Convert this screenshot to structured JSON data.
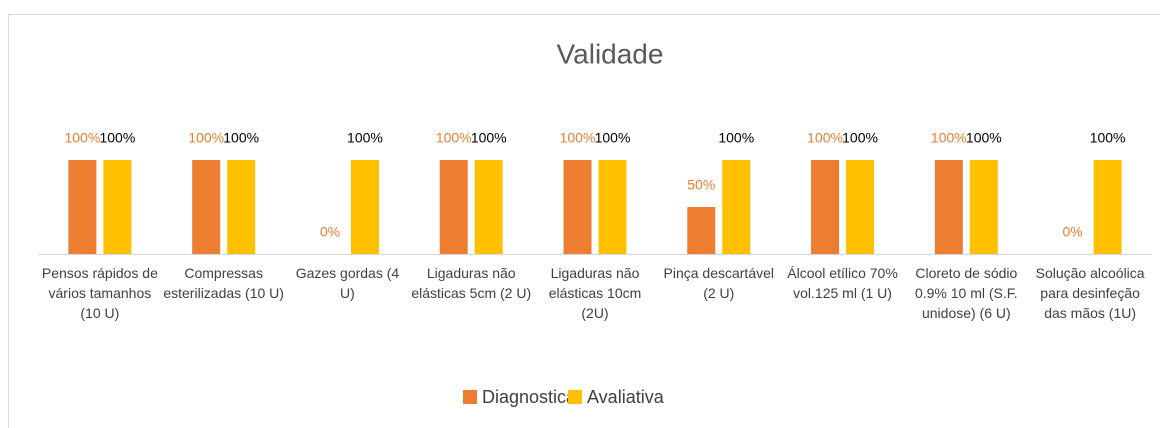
{
  "chart_data": {
    "type": "bar",
    "title": "Validade",
    "categories": [
      "Pensos rápidos de vários tamanhos (10 U)",
      "Compressas esterilizadas (10 U)",
      "Gazes gordas (4 U)",
      "Ligaduras não elásticas 5cm (2 U)",
      "Ligaduras não elásticas 10cm (2U)",
      "Pinça descartável (2 U)",
      "Álcool etílico 70% vol.125 ml (1 U)",
      "Cloreto de sódio 0.9% 10 ml (S.F. unidose) (6 U)",
      "Solução alcoólica para desinfeção das mãos (1U)"
    ],
    "series": [
      {
        "name": "Diagnostica",
        "color": "#ed7d31",
        "values": [
          100,
          100,
          0,
          100,
          100,
          50,
          100,
          100,
          0
        ],
        "value_labels": [
          "100%",
          "100%",
          "0%",
          "100%",
          "100%",
          "50%",
          "100%",
          "100%",
          "0%"
        ]
      },
      {
        "name": "Avaliativa",
        "color": "#ffc000",
        "values": [
          100,
          100,
          100,
          100,
          100,
          100,
          100,
          100,
          100
        ],
        "value_labels": [
          "100%",
          "100%",
          "100%",
          "100%",
          "100%",
          "100%",
          "100%",
          "100%",
          "100%"
        ]
      }
    ],
    "ylim": [
      0,
      100
    ],
    "legend": "bottom"
  }
}
